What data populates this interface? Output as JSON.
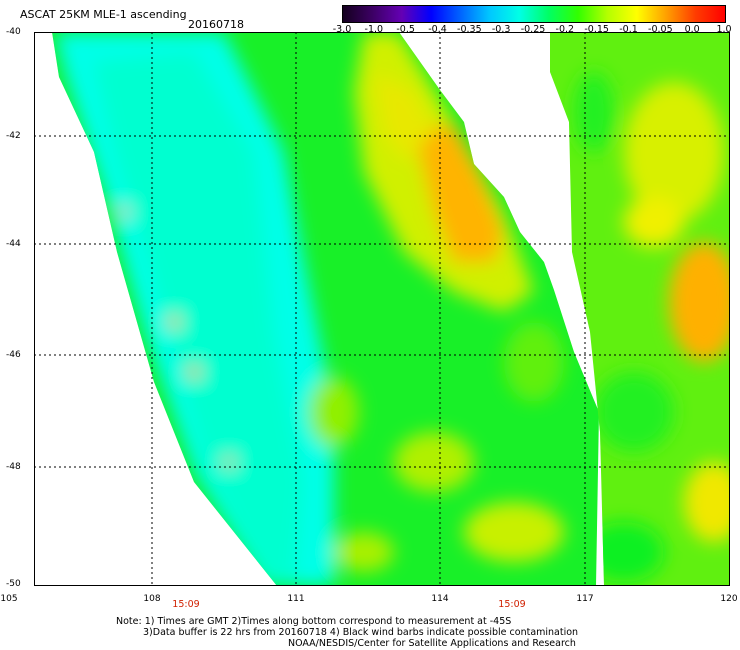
{
  "header": {
    "title": "ASCAT 25KM MLE-1 ascending",
    "date": "20160718"
  },
  "colorbar": {
    "labels": [
      "-3.0",
      "-1.0",
      "-0.5",
      "-0.4",
      "-0.35",
      "-0.3",
      "-0.25",
      "-0.2",
      "-0.15",
      "-0.1",
      "-0.05",
      "0.0",
      "1.0"
    ],
    "colors": [
      "#14001e",
      "#3c0064",
      "#6400b4",
      "#0000ff",
      "#0064ff",
      "#00c8ff",
      "#00ffe6",
      "#00ff64",
      "#32ff00",
      "#b4ff00",
      "#ffff00",
      "#ffa000",
      "#ff3c00",
      "#ff0000"
    ]
  },
  "map": {
    "lon_range": [
      105,
      120
    ],
    "lat_range": [
      -40,
      -50
    ],
    "x_ticks": [
      "105",
      "108",
      "111",
      "114",
      "117",
      "120"
    ],
    "y_ticks": [
      "-40",
      "-42",
      "-44",
      "-46",
      "-48",
      "-50"
    ],
    "pass_times": [
      "15:09",
      "15:09"
    ],
    "colors": {
      "cyan": "#00ffee",
      "green": "#10f020",
      "yellow_green": "#b4f000",
      "yellow": "#f0f000",
      "orange": "#ffa000"
    }
  },
  "notes": [
    "Note: 1) Times are GMT 2)Times along bottom correspond to measurement at -45S",
    "3)Data buffer is 22 hrs from 20160718 4) Black wind barbs indicate possible contamination",
    "NOAA/NESDIS/Center for Satellite Applications and Research"
  ]
}
